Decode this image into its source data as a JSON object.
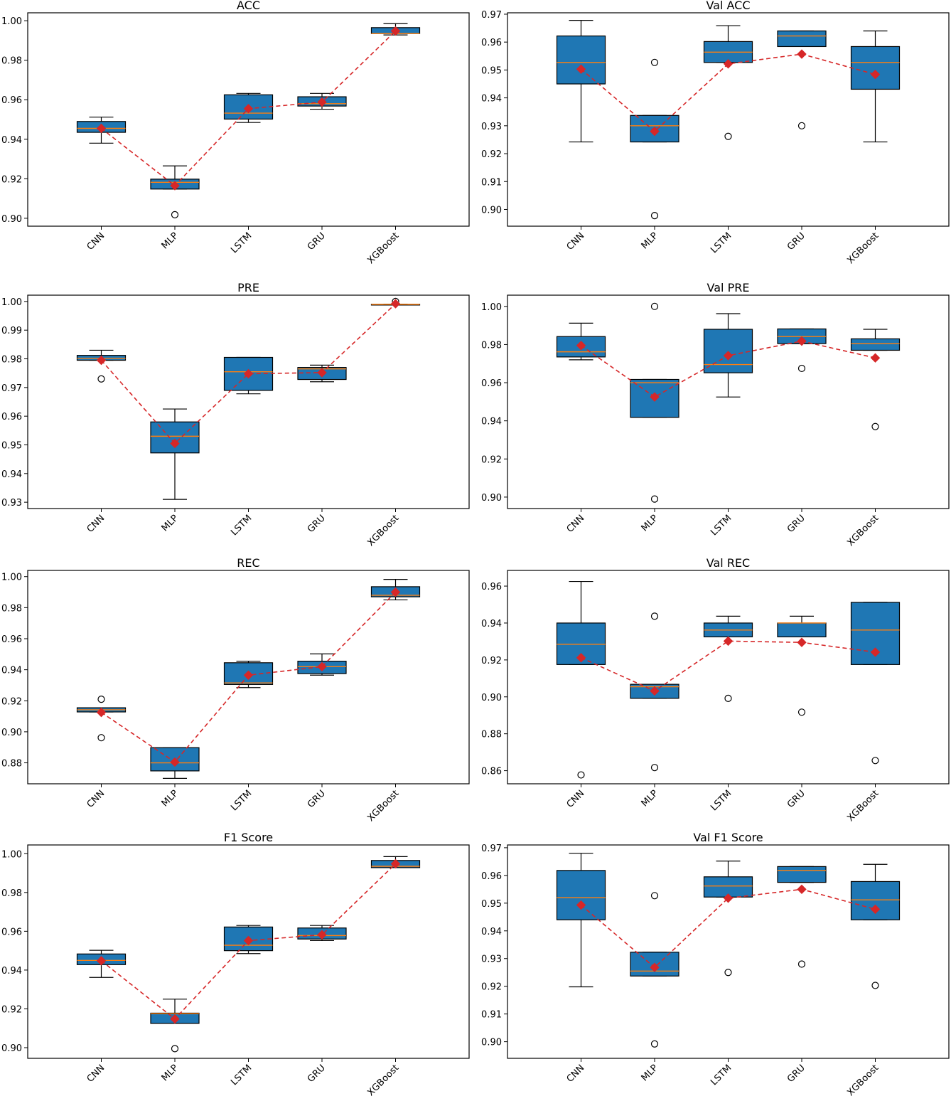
{
  "colors": {
    "box": "#1f77b4",
    "median": "#ff7f0e",
    "mean": "#d62728",
    "axis": "#000000"
  },
  "chart_data": [
    {
      "type": "box",
      "title": "ACC",
      "categories": [
        "CNN",
        "MLP",
        "LSTM",
        "GRU",
        "XGBoost"
      ],
      "ylim": [
        0.896,
        1.004
      ],
      "yticks": [
        0.9,
        0.92,
        0.94,
        0.96,
        0.98,
        1.0
      ],
      "tick_decimals": 2,
      "boxes": [
        {
          "q1": 0.9435,
          "median": 0.9455,
          "q3": 0.949,
          "whislo": 0.938,
          "whishi": 0.9512,
          "fliers": []
        },
        {
          "q1": 0.9148,
          "median": 0.9182,
          "q3": 0.9198,
          "whislo": 0.9148,
          "whishi": 0.9265,
          "fliers": [
            0.9018
          ]
        },
        {
          "q1": 0.9502,
          "median": 0.9532,
          "q3": 0.9625,
          "whislo": 0.9485,
          "whishi": 0.9632,
          "fliers": []
        },
        {
          "q1": 0.9568,
          "median": 0.958,
          "q3": 0.9615,
          "whislo": 0.9552,
          "whishi": 0.9632,
          "fliers": []
        },
        {
          "q1": 0.9935,
          "median": 0.9935,
          "q3": 0.9965,
          "whislo": 0.9928,
          "whishi": 0.9985,
          "fliers": []
        }
      ],
      "means": [
        0.9455,
        0.9165,
        0.9555,
        0.9588,
        0.9948
      ]
    },
    {
      "type": "box",
      "title": "Val ACC",
      "categories": [
        "CNN",
        "MLP",
        "LSTM",
        "GRU",
        "XGBoost"
      ],
      "ylim": [
        0.894,
        0.9705
      ],
      "yticks": [
        0.9,
        0.91,
        0.92,
        0.93,
        0.94,
        0.95,
        0.96,
        0.97
      ],
      "tick_decimals": 2,
      "boxes": [
        {
          "q1": 0.945,
          "median": 0.9527,
          "q3": 0.9622,
          "whislo": 0.9242,
          "whishi": 0.9678,
          "fliers": []
        },
        {
          "q1": 0.9242,
          "median": 0.93,
          "q3": 0.9337,
          "whislo": 0.9242,
          "whishi": 0.9337,
          "fliers": [
            0.9527,
            0.8978
          ]
        },
        {
          "q1": 0.9527,
          "median": 0.9564,
          "q3": 0.9602,
          "whislo": 0.9527,
          "whishi": 0.9659,
          "fliers": [
            0.9262
          ]
        },
        {
          "q1": 0.9584,
          "median": 0.9622,
          "q3": 0.964,
          "whislo": 0.9584,
          "whishi": 0.964,
          "fliers": [
            0.93
          ]
        },
        {
          "q1": 0.9431,
          "median": 0.9527,
          "q3": 0.9584,
          "whislo": 0.9242,
          "whishi": 0.964,
          "fliers": []
        }
      ],
      "means": [
        0.9503,
        0.928,
        0.9522,
        0.9557,
        0.9484
      ]
    },
    {
      "type": "box",
      "title": "PRE",
      "categories": [
        "CNN",
        "MLP",
        "LSTM",
        "GRU",
        "XGBoost"
      ],
      "ylim": [
        0.9278,
        1.0022
      ],
      "yticks": [
        0.93,
        0.94,
        0.95,
        0.96,
        0.97,
        0.98,
        0.99,
        1.0
      ],
      "tick_decimals": 2,
      "boxes": [
        {
          "q1": 0.9795,
          "median": 0.9802,
          "q3": 0.9812,
          "whislo": 0.9795,
          "whishi": 0.983,
          "fliers": [
            0.973
          ]
        },
        {
          "q1": 0.9472,
          "median": 0.953,
          "q3": 0.958,
          "whislo": 0.931,
          "whishi": 0.9625,
          "fliers": []
        },
        {
          "q1": 0.969,
          "median": 0.9755,
          "q3": 0.9805,
          "whislo": 0.9678,
          "whishi": 0.9805,
          "fliers": []
        },
        {
          "q1": 0.9728,
          "median": 0.9765,
          "q3": 0.977,
          "whislo": 0.972,
          "whishi": 0.9778,
          "fliers": []
        },
        {
          "q1": 0.999,
          "median": 0.999,
          "q3": 0.999,
          "whislo": 0.999,
          "whishi": 0.999,
          "fliers": [
            1.0
          ]
        }
      ],
      "means": [
        0.9795,
        0.9505,
        0.9748,
        0.9752,
        0.9992
      ]
    },
    {
      "type": "box",
      "title": "Val PRE",
      "categories": [
        "CNN",
        "MLP",
        "LSTM",
        "GRU",
        "XGBoost"
      ],
      "ylim": [
        0.894,
        1.0059
      ],
      "yticks": [
        0.9,
        0.92,
        0.94,
        0.96,
        0.98,
        1.0
      ],
      "tick_decimals": 2,
      "boxes": [
        {
          "q1": 0.9735,
          "median": 0.9762,
          "q3": 0.9842,
          "whislo": 0.972,
          "whishi": 0.9912,
          "fliers": []
        },
        {
          "q1": 0.9418,
          "median": 0.96,
          "q3": 0.9617,
          "whislo": 0.9418,
          "whishi": 0.9617,
          "fliers": [
            1.0,
            0.899
          ]
        },
        {
          "q1": 0.9652,
          "median": 0.9695,
          "q3": 0.988,
          "whislo": 0.9525,
          "whishi": 0.9962,
          "fliers": []
        },
        {
          "q1": 0.9805,
          "median": 0.9842,
          "q3": 0.9882,
          "whislo": 0.9805,
          "whishi": 0.9882,
          "fliers": [
            0.9675
          ]
        },
        {
          "q1": 0.977,
          "median": 0.9805,
          "q3": 0.983,
          "whislo": 0.977,
          "whishi": 0.988,
          "fliers": [
            0.937
          ]
        }
      ],
      "means": [
        0.9795,
        0.9525,
        0.9742,
        0.9818,
        0.973
      ]
    },
    {
      "type": "box",
      "title": "REC",
      "categories": [
        "CNN",
        "MLP",
        "LSTM",
        "GRU",
        "XGBoost"
      ],
      "ylim": [
        0.8665,
        1.004
      ],
      "yticks": [
        0.88,
        0.9,
        0.92,
        0.94,
        0.96,
        0.98,
        1.0
      ],
      "tick_decimals": 2,
      "boxes": [
        {
          "q1": 0.9128,
          "median": 0.9142,
          "q3": 0.9155,
          "whislo": 0.9128,
          "whishi": 0.9155,
          "fliers": [
            0.921,
            0.8962
          ]
        },
        {
          "q1": 0.8748,
          "median": 0.88,
          "q3": 0.8898,
          "whislo": 0.87,
          "whishi": 0.8898,
          "fliers": []
        },
        {
          "q1": 0.9305,
          "median": 0.9315,
          "q3": 0.9445,
          "whislo": 0.9285,
          "whishi": 0.9455,
          "fliers": []
        },
        {
          "q1": 0.9375,
          "median": 0.942,
          "q3": 0.9455,
          "whislo": 0.9365,
          "whishi": 0.9502,
          "fliers": []
        },
        {
          "q1": 0.987,
          "median": 0.988,
          "q3": 0.9935,
          "whislo": 0.985,
          "whishi": 0.9982,
          "fliers": []
        }
      ],
      "means": [
        0.9125,
        0.8805,
        0.9365,
        0.942,
        0.99
      ]
    },
    {
      "type": "box",
      "title": "Val REC",
      "categories": [
        "CNN",
        "MLP",
        "LSTM",
        "GRU",
        "XGBoost"
      ],
      "ylim": [
        0.8529,
        0.9685
      ],
      "yticks": [
        0.86,
        0.88,
        0.9,
        0.92,
        0.94,
        0.96
      ],
      "tick_decimals": 2,
      "boxes": [
        {
          "q1": 0.9175,
          "median": 0.9285,
          "q3": 0.94,
          "whislo": 0.9175,
          "whishi": 0.9625,
          "fliers": [
            0.8577
          ]
        },
        {
          "q1": 0.8992,
          "median": 0.9055,
          "q3": 0.9068,
          "whislo": 0.8992,
          "whishi": 0.9068,
          "fliers": [
            0.9437,
            0.8617
          ]
        },
        {
          "q1": 0.9325,
          "median": 0.9362,
          "q3": 0.94,
          "whislo": 0.9325,
          "whishi": 0.9437,
          "fliers": [
            0.8992
          ]
        },
        {
          "q1": 0.9325,
          "median": 0.94,
          "q3": 0.94,
          "whislo": 0.9325,
          "whishi": 0.9437,
          "fliers": [
            0.8917
          ]
        },
        {
          "q1": 0.9175,
          "median": 0.9362,
          "q3": 0.9512,
          "whislo": 0.9175,
          "whishi": 0.9512,
          "fliers": [
            0.8655
          ]
        }
      ],
      "means": [
        0.9212,
        0.9032,
        0.9302,
        0.9295,
        0.9242
      ]
    },
    {
      "type": "box",
      "title": "F1 Score",
      "categories": [
        "CNN",
        "MLP",
        "LSTM",
        "GRU",
        "XGBoost"
      ],
      "ylim": [
        0.8945,
        1.0045
      ],
      "yticks": [
        0.9,
        0.92,
        0.94,
        0.96,
        0.98,
        1.0
      ],
      "tick_decimals": 2,
      "boxes": [
        {
          "q1": 0.9428,
          "median": 0.945,
          "q3": 0.9483,
          "whislo": 0.9362,
          "whishi": 0.9502,
          "fliers": []
        },
        {
          "q1": 0.9125,
          "median": 0.9175,
          "q3": 0.9178,
          "whislo": 0.9125,
          "whishi": 0.925,
          "fliers": [
            0.8995
          ]
        },
        {
          "q1": 0.95,
          "median": 0.9528,
          "q3": 0.9622,
          "whislo": 0.9485,
          "whishi": 0.963,
          "fliers": []
        },
        {
          "q1": 0.956,
          "median": 0.9578,
          "q3": 0.9617,
          "whislo": 0.9552,
          "whishi": 0.963,
          "fliers": []
        },
        {
          "q1": 0.9928,
          "median": 0.9935,
          "q3": 0.9965,
          "whislo": 0.9928,
          "whishi": 0.9985,
          "fliers": []
        }
      ],
      "means": [
        0.9448,
        0.9148,
        0.9552,
        0.9582,
        0.9948
      ]
    },
    {
      "type": "box",
      "title": "Val F1 Score",
      "categories": [
        "CNN",
        "MLP",
        "LSTM",
        "GRU",
        "XGBoost"
      ],
      "ylim": [
        0.894,
        0.971
      ],
      "yticks": [
        0.9,
        0.91,
        0.92,
        0.93,
        0.94,
        0.95,
        0.96,
        0.97
      ],
      "tick_decimals": 2,
      "boxes": [
        {
          "q1": 0.944,
          "median": 0.952,
          "q3": 0.9618,
          "whislo": 0.9198,
          "whishi": 0.968,
          "fliers": []
        },
        {
          "q1": 0.9237,
          "median": 0.9255,
          "q3": 0.9323,
          "whislo": 0.9237,
          "whishi": 0.9323,
          "fliers": [
            0.9527,
            0.8992
          ]
        },
        {
          "q1": 0.9522,
          "median": 0.9562,
          "q3": 0.9595,
          "whislo": 0.9522,
          "whishi": 0.9652,
          "fliers": [
            0.925
          ]
        },
        {
          "q1": 0.9575,
          "median": 0.9618,
          "q3": 0.9632,
          "whislo": 0.9575,
          "whishi": 0.9632,
          "fliers": [
            0.928
          ]
        },
        {
          "q1": 0.944,
          "median": 0.9512,
          "q3": 0.9578,
          "whislo": 0.944,
          "whishi": 0.964,
          "fliers": [
            0.9203
          ]
        }
      ],
      "means": [
        0.9493,
        0.9268,
        0.9518,
        0.955,
        0.9478
      ]
    }
  ]
}
